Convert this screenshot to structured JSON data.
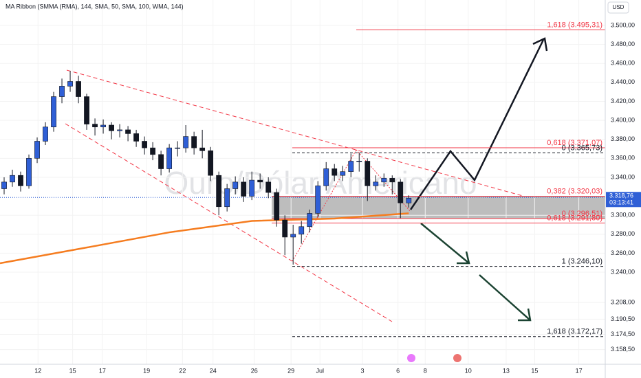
{
  "chart_data": {
    "type": "candlestick",
    "indicator_label": "MA Ribbon (SMMA (RMA), 144, SMA, 50, SMA, 100, WMA, 144)",
    "watermark": "Ouro/Dólar Americano",
    "currency": "USD",
    "up_color": "#2f5fd6",
    "down_color": "#131722",
    "ylim": [
      3143,
      3526.8
    ],
    "xlim": [
      -0.5,
      72.8
    ],
    "yticks": [
      {
        "value": 3500,
        "label": "3.500,00"
      },
      {
        "value": 3480,
        "label": "3.480,00"
      },
      {
        "value": 3460,
        "label": "3.460,00"
      },
      {
        "value": 3440,
        "label": "3.440,00"
      },
      {
        "value": 3420,
        "label": "3.420,00"
      },
      {
        "value": 3400,
        "label": "3.400,00"
      },
      {
        "value": 3380,
        "label": "3.380,00"
      },
      {
        "value": 3360,
        "label": "3.360,00"
      },
      {
        "value": 3340,
        "label": "3.340,00"
      },
      {
        "value": 3300,
        "label": "3.300,00"
      },
      {
        "value": 3280,
        "label": "3.280,00"
      },
      {
        "value": 3260,
        "label": "3.260,00"
      },
      {
        "value": 3240,
        "label": "3.240,00"
      },
      {
        "value": 3208,
        "label": "3.208,00"
      },
      {
        "value": 3190.5,
        "label": "3.190,50"
      },
      {
        "value": 3174.5,
        "label": "3.174,50"
      },
      {
        "value": 3158.5,
        "label": "3.158,50"
      }
    ],
    "xticks": [
      {
        "value": 4.1,
        "label": "12"
      },
      {
        "value": 8.3,
        "label": "15"
      },
      {
        "value": 11.9,
        "label": "17"
      },
      {
        "value": 17.25,
        "label": "19"
      },
      {
        "value": 21.6,
        "label": "22"
      },
      {
        "value": 25.3,
        "label": "24"
      },
      {
        "value": 30.3,
        "label": "26"
      },
      {
        "value": 34.75,
        "label": "29"
      },
      {
        "value": 38.25,
        "label": "Jul"
      },
      {
        "value": 43.4,
        "label": "3"
      },
      {
        "value": 47.7,
        "label": "6"
      },
      {
        "value": 51,
        "label": "8"
      },
      {
        "value": 56.2,
        "label": "10"
      },
      {
        "value": 60.8,
        "label": "13"
      },
      {
        "value": 64.25,
        "label": "15"
      },
      {
        "value": 69.6,
        "label": "17"
      }
    ],
    "current_price": {
      "value": 3318.76,
      "label": "3.318,76",
      "timer": "03:13:41"
    },
    "ohlc": {
      "open": [
        3328,
        3335,
        3342,
        3331,
        3360,
        3378,
        3393,
        3425,
        3436,
        3441,
        3425,
        3396,
        3393,
        3395,
        3389,
        3390,
        3386,
        3378,
        3371,
        3364,
        3349,
        3371,
        3371,
        3383,
        3371,
        3368,
        3342,
        3309,
        3328,
        3335,
        3320,
        3337,
        3335,
        3324,
        3295,
        3277,
        3280,
        3288,
        3302,
        3331,
        3349,
        3342,
        3346,
        3357,
        3357,
        3331,
        3335,
        3339,
        3335,
        3313
      ],
      "high": [
        3340,
        3348,
        3346,
        3364,
        3382,
        3398,
        3430,
        3444,
        3452,
        3447,
        3428,
        3402,
        3401,
        3398,
        3396,
        3394,
        3390,
        3383,
        3377,
        3368,
        3375,
        3378,
        3395,
        3388,
        3390,
        3372,
        3346,
        3333,
        3341,
        3340,
        3346,
        3344,
        3340,
        3328,
        3300,
        3290,
        3294,
        3306,
        3336,
        3356,
        3354,
        3352,
        3365,
        3366,
        3360,
        3342,
        3344,
        3342,
        3338,
        3321
      ],
      "low": [
        3322,
        3330,
        3325,
        3328,
        3355,
        3374,
        3388,
        3418,
        3430,
        3418,
        3390,
        3384,
        3386,
        3380,
        3382,
        3378,
        3372,
        3364,
        3358,
        3342,
        3345,
        3362,
        3366,
        3364,
        3360,
        3336,
        3300,
        3304,
        3322,
        3314,
        3316,
        3328,
        3318,
        3288,
        3258,
        3248,
        3270,
        3282,
        3298,
        3326,
        3336,
        3336,
        3340,
        3346,
        3315,
        3326,
        3330,
        3322,
        3297,
        3308
      ],
      "close": [
        3335,
        3342,
        3331,
        3360,
        3378,
        3393,
        3425,
        3436,
        3441,
        3425,
        3396,
        3393,
        3395,
        3389,
        3390,
        3386,
        3378,
        3371,
        3364,
        3349,
        3371,
        3371,
        3383,
        3371,
        3368,
        3342,
        3309,
        3328,
        3335,
        3320,
        3337,
        3335,
        3324,
        3295,
        3277,
        3280,
        3288,
        3302,
        3331,
        3349,
        3342,
        3346,
        3357,
        3357,
        3331,
        3335,
        3339,
        3335,
        3313,
        3318
      ]
    },
    "ma_line": {
      "color": "#f57c1f",
      "x": [
        -0.5,
        10,
        20,
        30,
        40,
        49
      ],
      "values": [
        3249.4,
        3266,
        3282,
        3294,
        3296.5,
        3302
      ]
    },
    "zone": {
      "top": 3320.03,
      "bottom": 3296.51,
      "color": "#b2b2b2"
    },
    "fib_levels": [
      {
        "label": "1,618 (3.495,31)",
        "price": 3495.31,
        "color": "#f23645",
        "dashed": false
      },
      {
        "label": "0,618 (3.371,07)",
        "price": 3371.07,
        "color": "#f23645",
        "dashed": false
      },
      {
        "label": "0 (3.365,73)",
        "price": 3365.73,
        "color": "#131722",
        "dashed": true
      },
      {
        "label": "0,382 (3.320,03)",
        "price": 3320.03,
        "color": "#f23645",
        "dashed": false
      },
      {
        "label": "0 (3.296,51)",
        "price": 3296.51,
        "color": "#f23645",
        "dashed": false
      },
      {
        "label": "0,618 (3.291,80)",
        "price": 3291.8,
        "color": "#f23645",
        "dashed": false
      },
      {
        "label": "1 (3.246,10)",
        "price": 3246.1,
        "color": "#131722",
        "dashed": true
      },
      {
        "label": "1,618 (3.172,17)",
        "price": 3172.17,
        "color": "#131722",
        "dashed": true
      }
    ]
  }
}
